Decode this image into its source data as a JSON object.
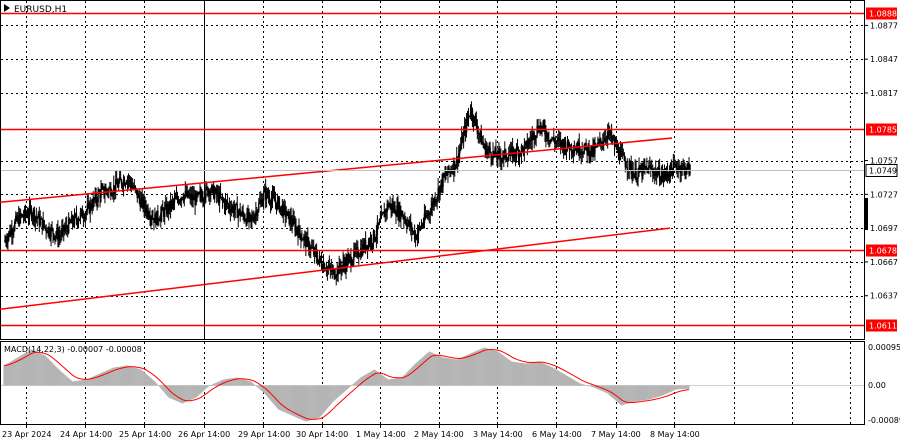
{
  "symbol": "EURUSD,H1",
  "colors": {
    "background": "#ffffff",
    "grid": "#000000",
    "level": "#ff0000",
    "candle": "#000000",
    "hist": "#b4b4b4",
    "signal": "#ff0000"
  },
  "price_axis": {
    "ticks": [
      "1.0877",
      "1.0847",
      "1.0817",
      "1.0757",
      "1.0727",
      "1.0697",
      "1.0667",
      "1.0637"
    ],
    "current": "1.0749"
  },
  "levels": [
    {
      "label": "1.0888",
      "value": 1.0888
    },
    {
      "label": "1.0785",
      "value": 1.0785
    },
    {
      "label": "1.0678",
      "value": 1.0678
    },
    {
      "label": "1.0611",
      "value": 1.0611
    }
  ],
  "time_axis": [
    "23 Apr 2024",
    "24 Apr 14:00",
    "25 Apr 14:00",
    "26 Apr 14:00",
    "29 Apr 14:00",
    "30 Apr 14:00",
    "1 May 14:00",
    "2 May 14:00",
    "3 May 14:00",
    "6 May 14:00",
    "7 May 14:00",
    "8 May 14:00"
  ],
  "macd": {
    "title": "MACD(14,22,3) -0.00007 -0.00008",
    "ticks": [
      "0.00095",
      "0.00",
      "-0.00089"
    ]
  },
  "chart_data": {
    "type": "candlestick",
    "price_range": [
      1.0611,
      1.0893
    ],
    "close_path": [
      [
        0,
        1.0685
      ],
      [
        1,
        1.0705
      ],
      [
        2,
        1.0712
      ],
      [
        3,
        1.0698
      ],
      [
        4,
        1.069
      ],
      [
        5,
        1.0703
      ],
      [
        6,
        1.0712
      ],
      [
        7,
        1.0728
      ],
      [
        8,
        1.0733
      ],
      [
        9,
        1.0742
      ],
      [
        10,
        1.072
      ],
      [
        11,
        1.0705
      ],
      [
        12,
        1.0715
      ],
      [
        13,
        1.0727
      ],
      [
        14,
        1.0722
      ],
      [
        15,
        1.0732
      ],
      [
        16,
        1.072
      ],
      [
        17,
        1.0712
      ],
      [
        18,
        1.0703
      ],
      [
        19,
        1.0728
      ],
      [
        20,
        1.0718
      ],
      [
        21,
        1.0702
      ],
      [
        22,
        1.0685
      ],
      [
        23,
        1.0668
      ],
      [
        24,
        1.0657
      ],
      [
        25,
        1.0667
      ],
      [
        26,
        1.0678
      ],
      [
        27,
        1.069
      ],
      [
        28,
        1.0718
      ],
      [
        29,
        1.071
      ],
      [
        30,
        1.069
      ],
      [
        31,
        1.0712
      ],
      [
        32,
        1.074
      ],
      [
        33,
        1.0757
      ],
      [
        34,
        1.0803
      ],
      [
        35,
        1.0768
      ],
      [
        36,
        1.076
      ],
      [
        37,
        1.0763
      ],
      [
        38,
        1.0768
      ],
      [
        39,
        1.0788
      ],
      [
        40,
        1.0775
      ],
      [
        41,
        1.077
      ],
      [
        42,
        1.0768
      ],
      [
        43,
        1.0765
      ],
      [
        44,
        1.0782
      ],
      [
        45,
        1.076
      ],
      [
        46,
        1.0745
      ],
      [
        47,
        1.075
      ],
      [
        48,
        1.0743
      ],
      [
        49,
        1.0752
      ],
      [
        50,
        1.0749
      ]
    ],
    "macd_hist": [
      0.0005,
      0.0007,
      0.0009,
      0.00075,
      0.0004,
      0.0001,
      0.00015,
      0.0003,
      0.00045,
      0.0005,
      0.0004,
      0.0001,
      -0.0003,
      -0.00045,
      -0.0003,
      0.0,
      0.00015,
      0.0002,
      0.0001,
      -0.0002,
      -0.0006,
      -0.00075,
      -0.0009,
      -0.0008,
      -0.0004,
      -0.0001,
      0.0002,
      0.0004,
      0.00015,
      0.0002,
      0.00055,
      0.00085,
      0.0007,
      0.00065,
      0.0008,
      0.00095,
      0.00085,
      0.0006,
      0.00055,
      0.0006,
      0.00045,
      0.00025,
      5e-05,
      -5e-05,
      -0.0002,
      -0.0005,
      -0.0004,
      -0.00035,
      -0.00025,
      -0.0001,
      -8e-05
    ],
    "channel": {
      "upper": [
        [
          0,
          1.072
        ],
        [
          44,
          1.0777
        ]
      ],
      "lower": [
        [
          0,
          1.0625
        ],
        [
          44,
          1.0697
        ]
      ]
    }
  }
}
